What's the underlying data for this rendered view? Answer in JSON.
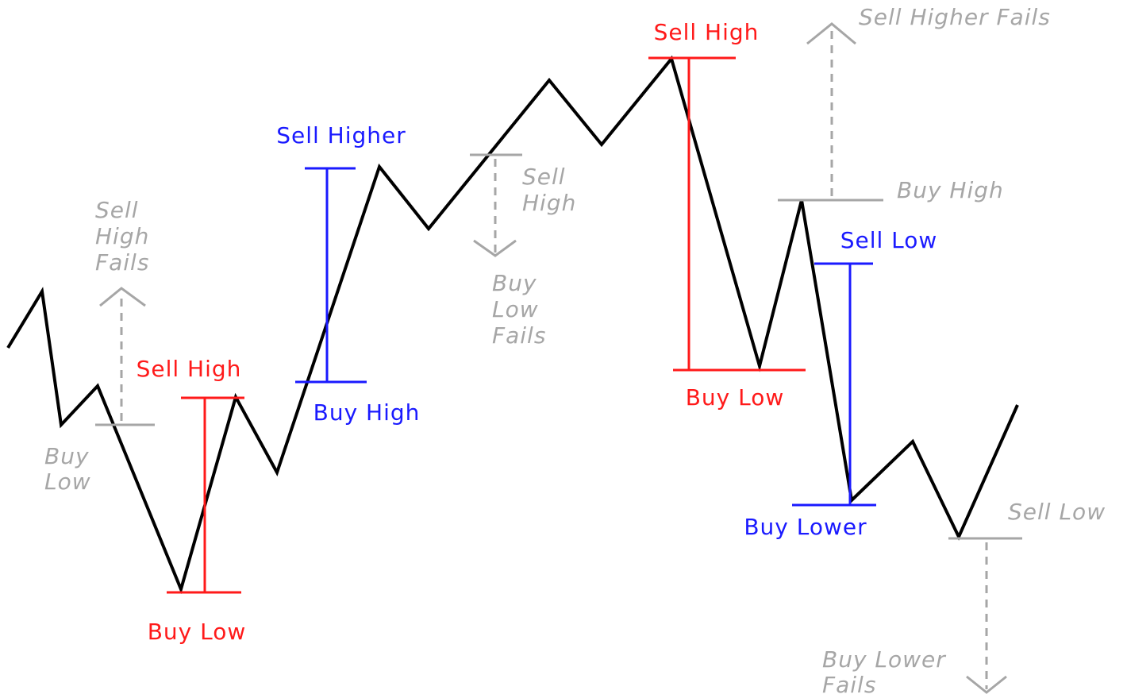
{
  "annotations": [
    {
      "lines": [
        "Sell High"
      ]
    },
    {
      "lines": [
        "Buy Low"
      ]
    },
    {
      "lines": [
        "Sell Higher"
      ]
    },
    {
      "lines": [
        "Buy High"
      ]
    },
    {
      "lines": [
        "Sell High"
      ]
    },
    {
      "lines": [
        "Buy Low"
      ]
    },
    {
      "lines": [
        "Sell Low"
      ]
    },
    {
      "lines": [
        "Buy Lower"
      ]
    },
    {
      "lines": [
        "Sell",
        "High",
        "Fails"
      ]
    },
    {
      "lines": [
        "Buy",
        "Low"
      ]
    },
    {
      "lines": [
        "Sell",
        "High"
      ]
    },
    {
      "lines": [
        "Buy",
        "Low",
        "Fails"
      ]
    },
    {
      "lines": [
        "Sell Higher Fails"
      ]
    },
    {
      "lines": [
        "Buy High"
      ]
    },
    {
      "lines": [
        "Sell Low"
      ]
    },
    {
      "lines": [
        "Buy Lower",
        "Fails"
      ]
    }
  ]
}
